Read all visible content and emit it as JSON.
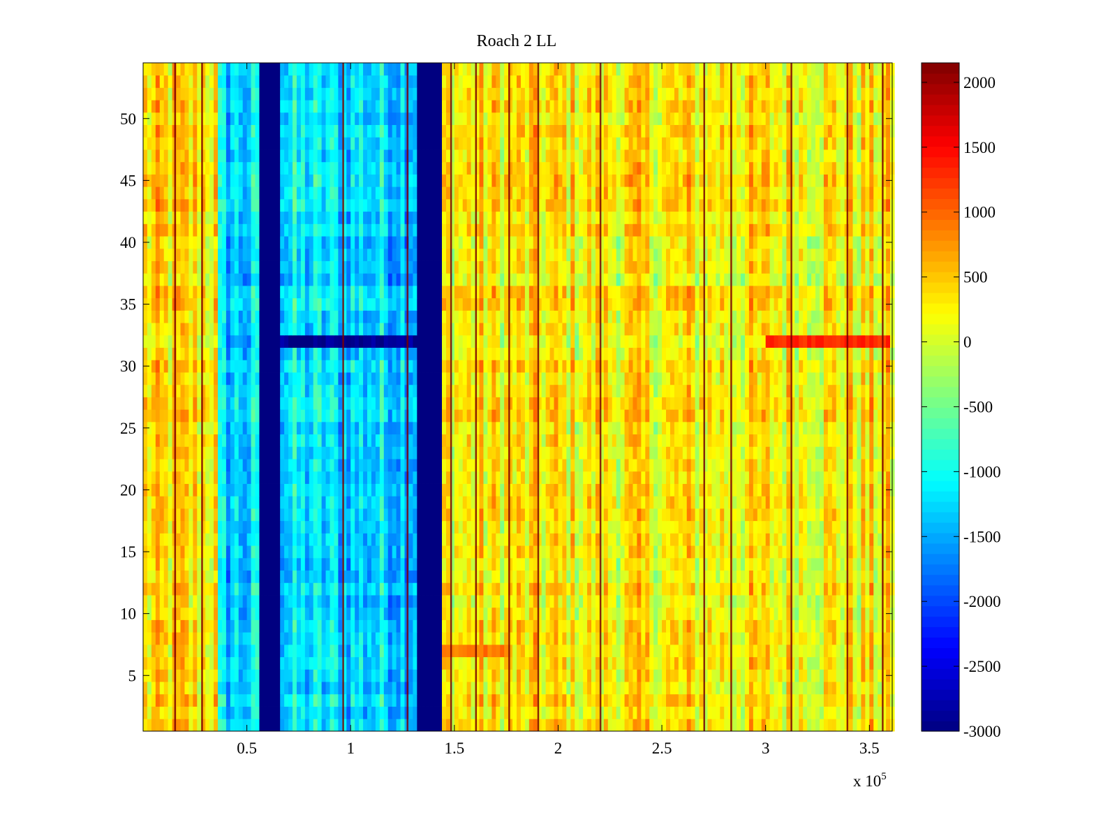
{
  "chart_data": {
    "type": "heatmap",
    "title": "Roach 2 LL",
    "xlabel": "",
    "ylabel": "",
    "x_range": [
      0,
      361000
    ],
    "y_range": [
      0.5,
      54.5
    ],
    "x_ticks": [
      50000,
      100000,
      150000,
      200000,
      250000,
      300000,
      350000
    ],
    "x_tick_labels": [
      "0.5",
      "1",
      "1.5",
      "2",
      "2.5",
      "3",
      "3.5"
    ],
    "x_multiplier": {
      "base": "x 10",
      "exponent": "5"
    },
    "y_ticks": [
      5,
      10,
      15,
      20,
      25,
      30,
      35,
      40,
      45,
      50
    ],
    "y_tick_labels": [
      "5",
      "10",
      "15",
      "20",
      "25",
      "30",
      "35",
      "40",
      "45",
      "50"
    ],
    "rows": 54,
    "colorbar": {
      "colormap": "jet",
      "range": [
        -3000,
        2150
      ],
      "ticks": [
        2000,
        1500,
        1000,
        500,
        0,
        -500,
        -1000,
        -1500,
        -2000,
        -2500,
        -3000
      ],
      "tick_labels": [
        "2000",
        "1500",
        "1000",
        "500",
        "0",
        "-500",
        "-1000",
        "-1500",
        "-2000",
        "-2500",
        "-3000"
      ]
    },
    "regions": [
      {
        "x_start": 0,
        "x_end": 37000,
        "base_value": 300,
        "description": "warm band"
      },
      {
        "x_start": 37000,
        "x_end": 56000,
        "base_value": -1300,
        "description": "cool band"
      },
      {
        "x_start": 56000,
        "x_end": 67000,
        "base_value": -3000,
        "description": "saturated gap"
      },
      {
        "x_start": 67000,
        "x_end": 133000,
        "base_value": -1250,
        "description": "cool band"
      },
      {
        "x_start": 133000,
        "x_end": 145000,
        "base_value": -3000,
        "description": "saturated gap"
      },
      {
        "x_start": 145000,
        "x_end": 361000,
        "base_value": 250,
        "description": "warm band"
      }
    ],
    "row_features": [
      {
        "row": 32,
        "x_start": 67000,
        "x_end": 133000,
        "value": -2900
      },
      {
        "row": 32,
        "x_start": 300000,
        "x_end": 361000,
        "value": 1300
      },
      {
        "row": 7,
        "x_start": 145000,
        "x_end": 176000,
        "value": 900
      }
    ],
    "vertical_lines_x": [
      15000,
      28000,
      96000,
      127000,
      148000,
      160000,
      176000,
      190000,
      220000,
      270000,
      283000,
      312000,
      339000,
      356000
    ]
  }
}
